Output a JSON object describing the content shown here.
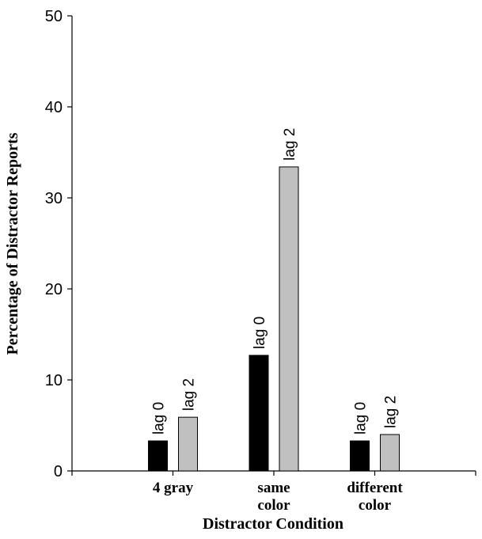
{
  "chart_data": {
    "type": "bar",
    "categories": [
      [
        "4 gray"
      ],
      [
        "same",
        "color"
      ],
      [
        "different",
        "color"
      ]
    ],
    "series": [
      {
        "name": "lag 0",
        "values": [
          3.3,
          12.7,
          3.3
        ],
        "color": "#000000"
      },
      {
        "name": "lag 2",
        "values": [
          5.9,
          33.4,
          4.0
        ],
        "color": "#c0c0c0"
      }
    ],
    "bar_labels": [
      "lag 0",
      "lag 2"
    ],
    "xlabel": "Distractor Condition",
    "ylabel": "Percentage of Distractor Reports",
    "ylim": [
      0,
      50
    ],
    "yticks": [
      0,
      10,
      20,
      30,
      40,
      50
    ],
    "grid": false,
    "legend": "none"
  }
}
